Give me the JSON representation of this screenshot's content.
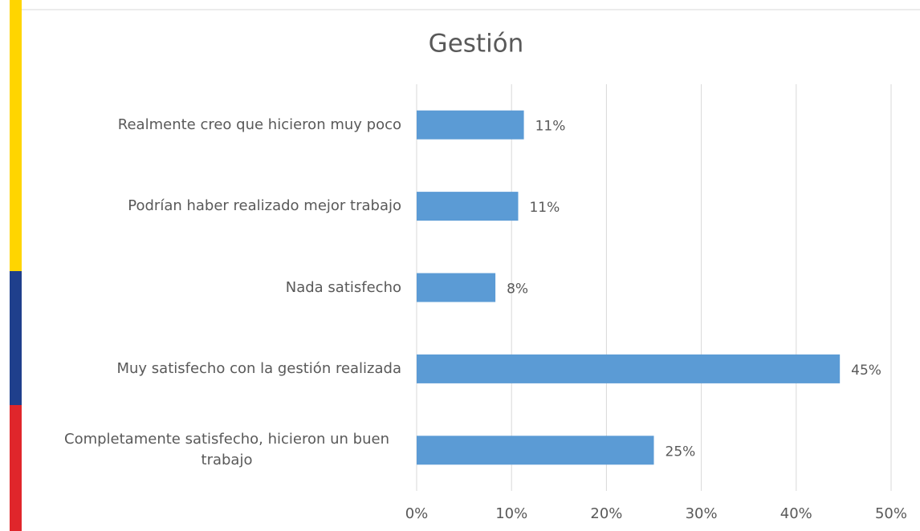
{
  "chart_data": {
    "type": "barh",
    "title": "Gestión",
    "categories": [
      "Realmente creo que hicieron muy poco",
      "Podrían haber realizado mejor trabajo",
      "Nada satisfecho",
      "Muy satisfecho con la gestión realizada",
      "Completamente satisfecho, hicieron un buen trabajo"
    ],
    "values": [
      11.3,
      10.7,
      8.3,
      44.6,
      25.0
    ],
    "value_labels": [
      "11%",
      "11%",
      "8%",
      "45%",
      "25%"
    ],
    "color": "#5b9bd5",
    "xlim": [
      0,
      50
    ],
    "xticks": [
      {
        "value": 0,
        "label": "0%"
      },
      {
        "value": 10,
        "label": "10%"
      },
      {
        "value": 20,
        "label": "20%"
      },
      {
        "value": 30,
        "label": "30%"
      },
      {
        "value": 40,
        "label": "40%"
      },
      {
        "value": 50,
        "label": "50%"
      }
    ],
    "grid": true
  }
}
